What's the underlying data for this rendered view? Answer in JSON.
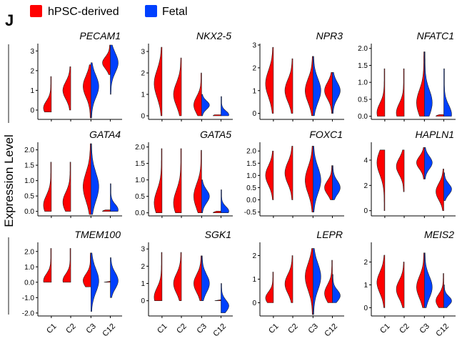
{
  "panel_label": "J",
  "legend": [
    {
      "label": "hPSC-derived",
      "color": "#ff0000"
    },
    {
      "label": "Fetal",
      "color": "#0040ff"
    }
  ],
  "y_axis_title": "Expression Level",
  "chart_data": [
    {
      "type": "split-violin",
      "gene": "PECAM1",
      "categories": [
        "C1",
        "C2",
        "C3",
        "C12"
      ],
      "ylim": [
        -0.4,
        3.3
      ],
      "yticks": [
        0,
        1,
        2,
        3
      ],
      "ytick_labels": [
        "0",
        "1",
        "2",
        "3"
      ],
      "violins": [
        {
          "category": "C1",
          "hpsc": {
            "min": -0.1,
            "max": 1.7,
            "median": 0.1
          },
          "fetal": null
        },
        {
          "category": "C2",
          "hpsc": {
            "min": 0,
            "max": 2.2,
            "median": 1.0
          },
          "fetal": null
        },
        {
          "category": "C3",
          "hpsc": {
            "min": -0.4,
            "max": 2.3,
            "median": 1.2
          },
          "fetal": {
            "min": -0.4,
            "max": 2.4,
            "median": 1.2
          }
        },
        {
          "category": "C12",
          "hpsc": {
            "min": 1.8,
            "max": 3.3,
            "median": 2.4
          },
          "fetal": {
            "min": 0.8,
            "max": 3.3,
            "median": 2.4
          }
        }
      ]
    },
    {
      "type": "split-violin",
      "gene": "NKX2-5",
      "categories": [
        "C1",
        "C2",
        "C3",
        "C12"
      ],
      "ylim": [
        -0.1,
        3.3
      ],
      "yticks": [
        0,
        1,
        2,
        3
      ],
      "ytick_labels": [
        "0",
        "1",
        "2",
        "3"
      ],
      "violins": [
        {
          "category": "C1",
          "hpsc": {
            "min": 0,
            "max": 3.2,
            "median": 1.5
          },
          "fetal": null
        },
        {
          "category": "C2",
          "hpsc": {
            "min": 0,
            "max": 2.7,
            "median": 1.0
          },
          "fetal": null
        },
        {
          "category": "C3",
          "hpsc": {
            "min": 0,
            "max": 2.0,
            "median": 0.5
          },
          "fetal": {
            "min": 0,
            "max": 1.0,
            "median": 0.5
          }
        },
        {
          "category": "C12",
          "hpsc": {
            "min": 0,
            "max": 0.05,
            "median": 0
          },
          "fetal": {
            "min": 0,
            "max": 0.9,
            "median": 0.05
          }
        }
      ]
    },
    {
      "type": "split-violin",
      "gene": "NPR3",
      "categories": [
        "C1",
        "C2",
        "C3",
        "C12"
      ],
      "ylim": [
        -0.2,
        3.0
      ],
      "yticks": [
        0,
        1,
        2,
        3
      ],
      "ytick_labels": [
        "0",
        "1",
        "2",
        "3"
      ],
      "violins": [
        {
          "category": "C1",
          "hpsc": {
            "min": 0,
            "max": 2.9,
            "median": 1.3
          },
          "fetal": null
        },
        {
          "category": "C2",
          "hpsc": {
            "min": 0,
            "max": 2.4,
            "median": 1.0
          },
          "fetal": null
        },
        {
          "category": "C3",
          "hpsc": {
            "min": -0.1,
            "max": 2.5,
            "median": 1.0
          },
          "fetal": {
            "min": -0.1,
            "max": 2.5,
            "median": 1.0
          }
        },
        {
          "category": "C12",
          "hpsc": {
            "min": 0,
            "max": 1.8,
            "median": 1.0
          },
          "fetal": {
            "min": 0,
            "max": 1.8,
            "median": 1.0
          }
        }
      ]
    },
    {
      "type": "split-violin",
      "gene": "NFATC1",
      "categories": [
        "C1",
        "C2",
        "C3",
        "C12"
      ],
      "ylim": [
        -0.05,
        2.1
      ],
      "yticks": [
        0,
        0.5,
        1,
        1.5,
        2
      ],
      "ytick_labels": [
        "0.0",
        "0.5",
        "1.0",
        "1.5",
        "2.0"
      ],
      "violins": [
        {
          "category": "C1",
          "hpsc": {
            "min": 0,
            "max": 1.4,
            "median": 0.1
          },
          "fetal": null
        },
        {
          "category": "C2",
          "hpsc": {
            "min": 0,
            "max": 1.4,
            "median": 0.1
          },
          "fetal": null
        },
        {
          "category": "C3",
          "hpsc": {
            "min": 0,
            "max": 1.9,
            "median": 0.4
          },
          "fetal": {
            "min": 0,
            "max": 1.9,
            "median": 0.4
          }
        },
        {
          "category": "C12",
          "hpsc": {
            "min": 0,
            "max": 0.05,
            "median": 0
          },
          "fetal": {
            "min": 0,
            "max": 1.4,
            "median": 0.05
          }
        }
      ]
    },
    {
      "type": "split-violin",
      "gene": "GATA4",
      "categories": [
        "C1",
        "C2",
        "C3",
        "C12"
      ],
      "ylim": [
        -0.1,
        2.2
      ],
      "yticks": [
        0,
        0.5,
        1,
        1.5,
        2
      ],
      "ytick_labels": [
        "0.0",
        "0.5",
        "1.0",
        "1.5",
        "2.0"
      ],
      "violins": [
        {
          "category": "C1",
          "hpsc": {
            "min": 0,
            "max": 1.6,
            "median": 0.2
          },
          "fetal": null
        },
        {
          "category": "C2",
          "hpsc": {
            "min": 0,
            "max": 1.6,
            "median": 0.3
          },
          "fetal": null
        },
        {
          "category": "C3",
          "hpsc": {
            "min": -0.1,
            "max": 2.2,
            "median": 0.8
          },
          "fetal": {
            "min": -0.1,
            "max": 2.2,
            "median": 0.8
          }
        },
        {
          "category": "C12",
          "hpsc": {
            "min": 0,
            "max": 0.05,
            "median": 0
          },
          "fetal": {
            "min": 0,
            "max": 0.9,
            "median": 0.05
          }
        }
      ]
    },
    {
      "type": "split-violin",
      "gene": "GATA5",
      "categories": [
        "C1",
        "C2",
        "C3",
        "C12"
      ],
      "ylim": [
        -0.05,
        2.1
      ],
      "yticks": [
        0,
        0.5,
        1,
        1.5,
        2
      ],
      "ytick_labels": [
        "0.0",
        "0.5",
        "1.0",
        "1.5",
        "2.0"
      ],
      "violins": [
        {
          "category": "C1",
          "hpsc": {
            "min": 0,
            "max": 1.95,
            "median": 0.3
          },
          "fetal": null
        },
        {
          "category": "C2",
          "hpsc": {
            "min": 0,
            "max": 1.95,
            "median": 0.3
          },
          "fetal": null
        },
        {
          "category": "C3",
          "hpsc": {
            "min": 0,
            "max": 1.9,
            "median": 0.5
          },
          "fetal": {
            "min": 0,
            "max": 1.0,
            "median": 0.5
          }
        },
        {
          "category": "C12",
          "hpsc": {
            "min": 0,
            "max": 0.05,
            "median": 0
          },
          "fetal": {
            "min": 0,
            "max": 0.7,
            "median": 0.05
          }
        }
      ]
    },
    {
      "type": "split-violin",
      "gene": "FOXC1",
      "categories": [
        "C1",
        "C2",
        "C3",
        "C12"
      ],
      "ylim": [
        -0.6,
        2.3
      ],
      "yticks": [
        -0.5,
        0,
        0.5,
        1,
        1.5,
        2
      ],
      "ytick_labels": [
        "-0.5",
        "0.0",
        "0.5",
        "1.0",
        "1.5",
        "2.0"
      ],
      "violins": [
        {
          "category": "C1",
          "hpsc": {
            "min": 0,
            "max": 2.0,
            "median": 1.0
          },
          "fetal": null
        },
        {
          "category": "C2",
          "hpsc": {
            "min": 0,
            "max": 2.2,
            "median": 1.1
          },
          "fetal": null
        },
        {
          "category": "C3",
          "hpsc": {
            "min": -0.5,
            "max": 2.2,
            "median": 0.8
          },
          "fetal": {
            "min": -0.5,
            "max": 2.2,
            "median": 0.8
          }
        },
        {
          "category": "C12",
          "hpsc": {
            "min": 0,
            "max": 1.4,
            "median": 0.5
          },
          "fetal": {
            "min": 0,
            "max": 1.4,
            "median": 0.5
          }
        }
      ]
    },
    {
      "type": "split-violin",
      "gene": "HAPLN1",
      "categories": [
        "C1",
        "C2",
        "C3",
        "C12"
      ],
      "ylim": [
        -0.3,
        5.3
      ],
      "yticks": [
        0,
        2,
        4
      ],
      "ytick_labels": [
        "0",
        "2",
        "4"
      ],
      "violins": [
        {
          "category": "C1",
          "hpsc": {
            "min": 0,
            "max": 4.8,
            "median": 3.8
          },
          "fetal": null
        },
        {
          "category": "C2",
          "hpsc": {
            "min": 1.5,
            "max": 4.8,
            "median": 3.5
          },
          "fetal": null
        },
        {
          "category": "C3",
          "hpsc": {
            "min": 2.5,
            "max": 5.0,
            "median": 3.8
          },
          "fetal": {
            "min": 2.5,
            "max": 5.0,
            "median": 3.8
          }
        },
        {
          "category": "C12",
          "hpsc": {
            "min": 0,
            "max": 3.3,
            "median": 1.5
          },
          "fetal": {
            "min": 0.8,
            "max": 3.0,
            "median": 1.7
          }
        }
      ]
    },
    {
      "type": "split-violin",
      "gene": "TMEM100",
      "categories": [
        "C1",
        "C2",
        "C3",
        "C12"
      ],
      "ylim": [
        -2.1,
        2.5
      ],
      "yticks": [
        -2,
        -1,
        0,
        1,
        2
      ],
      "ytick_labels": [
        "-2.0",
        "-1.0",
        "0.0",
        "1.0",
        "2.0"
      ],
      "violins": [
        {
          "category": "C1",
          "hpsc": {
            "min": 0,
            "max": 2.2,
            "median": 0.1
          },
          "fetal": null
        },
        {
          "category": "C2",
          "hpsc": {
            "min": 0,
            "max": 2.2,
            "median": 0.1
          },
          "fetal": null
        },
        {
          "category": "C3",
          "hpsc": {
            "min": -0.3,
            "max": 1.9,
            "median": 0.1
          },
          "fetal": {
            "min": -1.9,
            "max": 1.9,
            "median": 0.1
          }
        },
        {
          "category": "C12",
          "hpsc": {
            "min": 0,
            "max": 0.05,
            "median": 0
          },
          "fetal": {
            "min": -1.0,
            "max": 1.6,
            "median": 0.1
          }
        }
      ]
    },
    {
      "type": "split-violin",
      "gene": "SGK1",
      "categories": [
        "C1",
        "C2",
        "C3",
        "C12"
      ],
      "ylim": [
        -0.8,
        3.3
      ],
      "yticks": [
        0,
        1,
        2,
        3
      ],
      "ytick_labels": [
        "0",
        "1",
        "2",
        "3"
      ],
      "violins": [
        {
          "category": "C1",
          "hpsc": {
            "min": 0,
            "max": 2.8,
            "median": 0.2
          },
          "fetal": null
        },
        {
          "category": "C2",
          "hpsc": {
            "min": 0,
            "max": 2.8,
            "median": 1.0
          },
          "fetal": null
        },
        {
          "category": "C3",
          "hpsc": {
            "min": 0,
            "max": 2.6,
            "median": 1.0
          },
          "fetal": {
            "min": 0,
            "max": 2.6,
            "median": 1.0
          }
        },
        {
          "category": "C12",
          "hpsc": {
            "min": 0,
            "max": 0.05,
            "median": 0
          },
          "fetal": {
            "min": -0.7,
            "max": 1.0,
            "median": -0.3
          }
        }
      ]
    },
    {
      "type": "split-violin",
      "gene": "LEPR",
      "categories": [
        "C1",
        "C2",
        "C3",
        "C12"
      ],
      "ylim": [
        -0.5,
        2.5
      ],
      "yticks": [
        0,
        1,
        2
      ],
      "ytick_labels": [
        "0",
        "1",
        "2"
      ],
      "violins": [
        {
          "category": "C1",
          "hpsc": {
            "min": 0,
            "max": 1.3,
            "median": 0.2
          },
          "fetal": null
        },
        {
          "category": "C2",
          "hpsc": {
            "min": 0,
            "max": 2.0,
            "median": 0.8
          },
          "fetal": null
        },
        {
          "category": "C3",
          "hpsc": {
            "min": -0.5,
            "max": 2.3,
            "median": 1.1
          },
          "fetal": {
            "min": -0.5,
            "max": 2.3,
            "median": 1.1
          }
        },
        {
          "category": "C12",
          "hpsc": {
            "min": 0,
            "max": 1.8,
            "median": 0.4
          },
          "fetal": {
            "min": 0,
            "max": 1.2,
            "median": 0.3
          }
        }
      ]
    },
    {
      "type": "split-violin",
      "gene": "MEIS2",
      "categories": [
        "C1",
        "C2",
        "C3",
        "C12"
      ],
      "ylim": [
        -0.3,
        2.8
      ],
      "yticks": [
        0,
        1,
        2
      ],
      "ytick_labels": [
        "0",
        "1",
        "2"
      ],
      "violins": [
        {
          "category": "C1",
          "hpsc": {
            "min": 0,
            "max": 2.3,
            "median": 1.1
          },
          "fetal": null
        },
        {
          "category": "C2",
          "hpsc": {
            "min": 0,
            "max": 2.0,
            "median": 0.8
          },
          "fetal": null
        },
        {
          "category": "C3",
          "hpsc": {
            "min": 0,
            "max": 2.4,
            "median": 0.9
          },
          "fetal": {
            "min": 0,
            "max": 2.4,
            "median": 0.9
          }
        },
        {
          "category": "C12",
          "hpsc": {
            "min": 0,
            "max": 1.5,
            "median": 0.3
          },
          "fetal": {
            "min": 0,
            "max": 1.0,
            "median": 0.3
          }
        }
      ]
    }
  ]
}
